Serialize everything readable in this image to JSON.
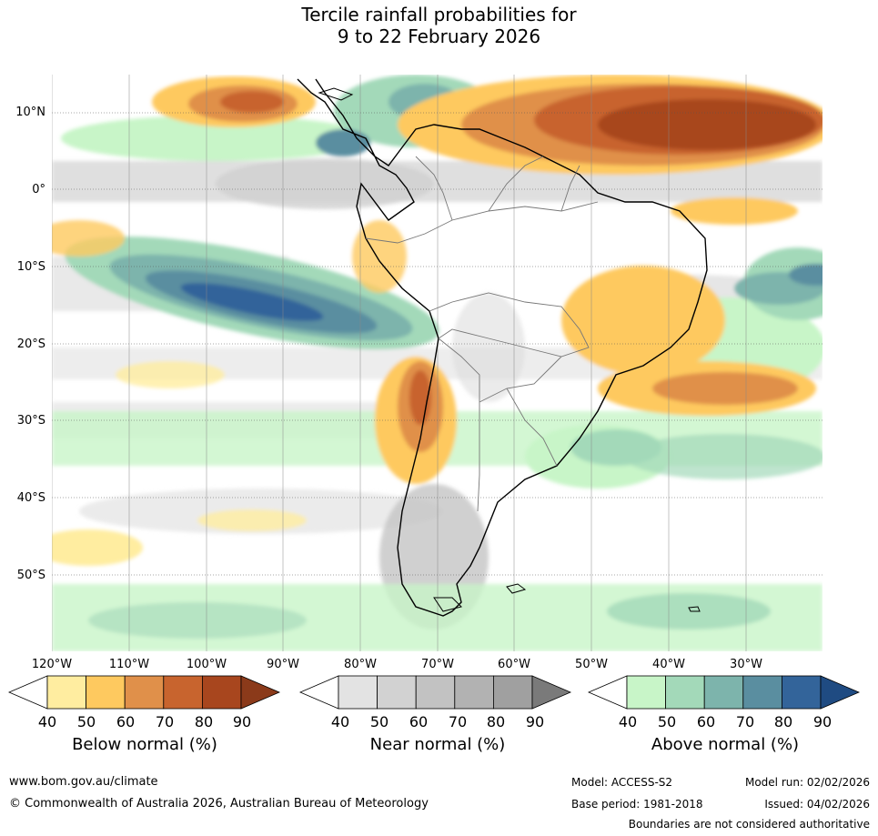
{
  "title": {
    "line1": "Tercile rainfall probabilities for",
    "line2": "9 to 22 February 2026"
  },
  "map": {
    "lat_labels": [
      "10°N",
      "0°",
      "10°S",
      "20°S",
      "30°S",
      "40°S",
      "50°S"
    ],
    "lon_labels": [
      "120°W",
      "110°W",
      "100°W",
      "90°W",
      "80°W",
      "70°W",
      "60°W",
      "50°W",
      "40°W",
      "30°W"
    ]
  },
  "legends": {
    "below": {
      "title": "Below normal (%)",
      "ticks": [
        "40",
        "50",
        "60",
        "70",
        "80",
        "90"
      ],
      "colors": [
        "#ffffff",
        "#ffeda0",
        "#fec95f",
        "#e0904a",
        "#c8642e",
        "#a8461e",
        "#8b3a1a"
      ]
    },
    "near": {
      "title": "Near normal (%)",
      "ticks": [
        "40",
        "50",
        "60",
        "70",
        "80",
        "90"
      ],
      "colors": [
        "#ffffff",
        "#e3e3e3",
        "#d2d2d2",
        "#c2c2c2",
        "#b2b2b2",
        "#a0a0a0",
        "#7a7a7a"
      ]
    },
    "above": {
      "title": "Above normal (%)",
      "ticks": [
        "40",
        "50",
        "60",
        "70",
        "80",
        "90"
      ],
      "colors": [
        "#ffffff",
        "#c8f5c8",
        "#a3d9b9",
        "#7db4ac",
        "#5a8ea0",
        "#33649a",
        "#1f4b82"
      ]
    }
  },
  "footer": {
    "url": "www.bom.gov.au/climate",
    "copyright": "© Commonwealth of Australia 2026, Australian Bureau of Meteorology",
    "model": "Model: ACCESS-S2",
    "base_period": "Base period: 1981-2018",
    "model_run": "Model run: 02/02/2026",
    "issued": "Issued: 04/02/2026",
    "disclaimer": "Boundaries are not considered authoritative"
  }
}
